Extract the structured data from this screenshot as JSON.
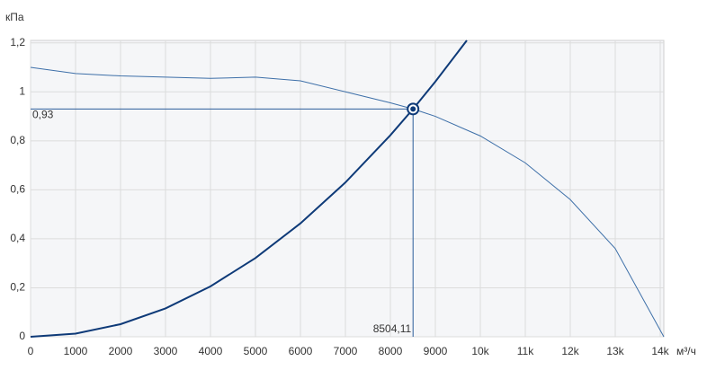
{
  "chart_data": {
    "type": "line",
    "y_axis_label": "кПа",
    "x_axis_label": "м³/ч",
    "xlim": [
      0,
      14080
    ],
    "ylim": [
      0,
      1.21
    ],
    "xticks": [
      0,
      1000,
      2000,
      3000,
      4000,
      5000,
      6000,
      7000,
      8000,
      9000,
      {
        "value": 10000,
        "label": "10k"
      },
      {
        "value": 11000,
        "label": "11k"
      },
      {
        "value": 12000,
        "label": "12k"
      },
      {
        "value": 13000,
        "label": "13k"
      },
      {
        "value": 14000,
        "label": "14k"
      }
    ],
    "yticks": [
      0,
      {
        "value": 0.2,
        "label": "0,2"
      },
      {
        "value": 0.4,
        "label": "0,4"
      },
      {
        "value": 0.6,
        "label": "0,6"
      },
      {
        "value": 0.8,
        "label": "0,8"
      },
      1,
      {
        "value": 1.2,
        "label": "1,2"
      }
    ],
    "grid": true,
    "series": [
      {
        "color": "#3d6fa8",
        "width": 1,
        "x": [
          0,
          1000,
          2000,
          3000,
          4000,
          5000,
          6000,
          7000,
          8000,
          8504.11,
          9000,
          10000,
          11000,
          12000,
          13000,
          14080
        ],
        "values": [
          1.1,
          1.075,
          1.065,
          1.06,
          1.055,
          1.06,
          1.045,
          1.0,
          0.955,
          0.93,
          0.9,
          0.82,
          0.71,
          0.56,
          0.36,
          0
        ]
      },
      {
        "color": "#0e3a78",
        "width": 2,
        "x": [
          0,
          1000,
          2000,
          3000,
          4000,
          5000,
          6000,
          7000,
          8000,
          8504.11,
          9000,
          9700
        ],
        "values": [
          0,
          0.0129,
          0.0514,
          0.1157,
          0.2058,
          0.3215,
          0.463,
          0.6301,
          0.823,
          0.93,
          1.0417,
          1.21
        ]
      }
    ],
    "point": {
      "x": 8504.11,
      "y": 0.93,
      "x_label": "8504,11",
      "y_label": "0,93",
      "color": "#0e3a78"
    }
  }
}
